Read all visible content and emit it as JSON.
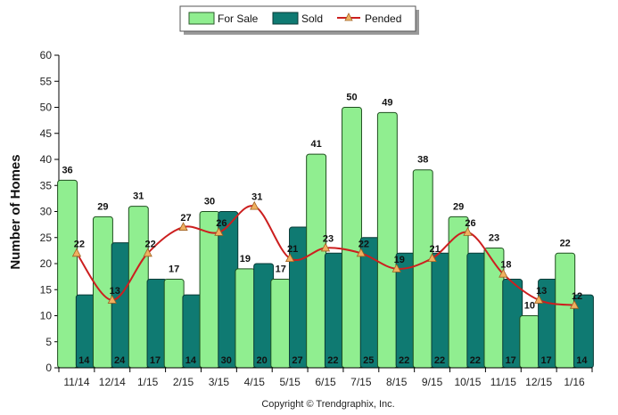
{
  "chart_data": {
    "type": "bar",
    "categories": [
      "11/14",
      "12/14",
      "1/15",
      "2/15",
      "3/15",
      "4/15",
      "5/15",
      "6/15",
      "7/15",
      "8/15",
      "9/15",
      "10/15",
      "11/15",
      "12/15",
      "1/16"
    ],
    "series": [
      {
        "name": "For Sale",
        "type": "bar",
        "color": "#90ee90",
        "values": [
          36,
          29,
          31,
          17,
          30,
          19,
          17,
          41,
          50,
          49,
          38,
          29,
          23,
          10,
          22
        ]
      },
      {
        "name": "Sold",
        "type": "bar",
        "color": "#0f7a72",
        "values": [
          14,
          24,
          17,
          14,
          30,
          20,
          27,
          22,
          25,
          22,
          22,
          22,
          17,
          17,
          14
        ]
      },
      {
        "name": "Pended",
        "type": "line",
        "color": "#cc1f1f",
        "marker_color": "#f0b060",
        "values": [
          22,
          13,
          22,
          27,
          26,
          31,
          21,
          23,
          22,
          19,
          21,
          26,
          18,
          13,
          12
        ]
      }
    ],
    "for_sale_labels": [
      "36",
      "29",
      "31",
      "17",
      "30",
      "19",
      "17",
      "41",
      "50",
      "49",
      "38",
      "29",
      "23",
      "10",
      "22"
    ],
    "sold_labels": [
      "14",
      "24",
      "17",
      "14",
      "30",
      "20",
      "27",
      "22",
      "25",
      "22",
      "22",
      "22",
      "17",
      "17",
      "14"
    ],
    "pended_labels": [
      "22",
      "13",
      "22",
      "27",
      "26",
      "31",
      "21",
      "23",
      "22",
      "19",
      "21",
      "26",
      "18",
      "13",
      "12"
    ],
    "ylabel": "Number of Homes",
    "xlabel": "",
    "ylim": [
      0,
      60
    ],
    "yticks": [
      "0",
      "5",
      "10",
      "15",
      "20",
      "25",
      "30",
      "35",
      "40",
      "45",
      "50",
      "55",
      "60"
    ],
    "legend_position": "top-center",
    "grid": false
  },
  "legend": {
    "for_sale": "For Sale",
    "sold": "Sold",
    "pended": "Pended"
  },
  "footer": {
    "copyright": "Copyright © Trendgraphix, Inc."
  }
}
